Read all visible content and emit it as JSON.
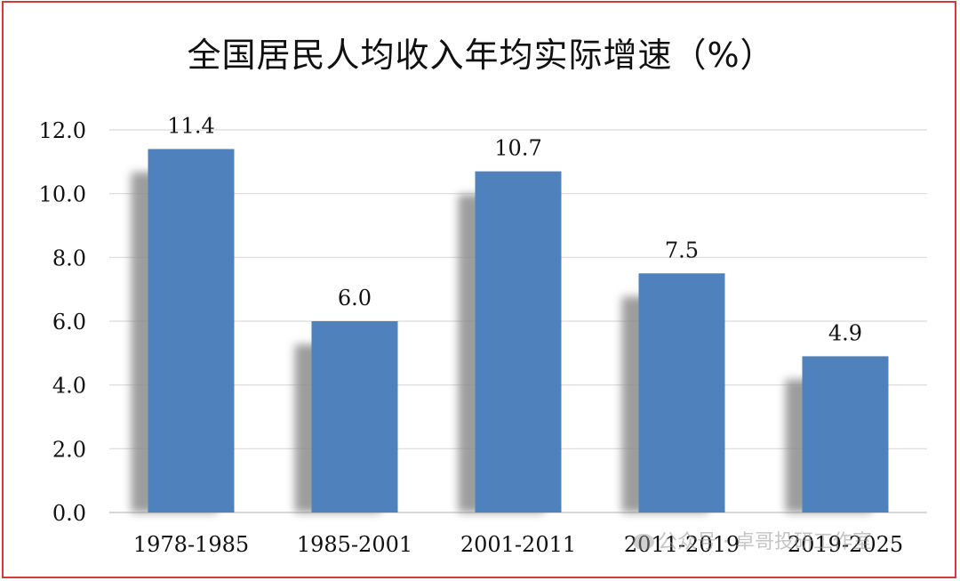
{
  "chart_data": {
    "type": "bar",
    "title": "全国居民人均收入年均实际增速（%）",
    "categories": [
      "1978-1985",
      "1985-2001",
      "2001-2011",
      "2011-2019",
      "2019-2025"
    ],
    "series": [
      {
        "values": [
          11.4,
          6.0,
          10.7,
          7.5,
          4.9
        ],
        "color": "#4f81bd"
      }
    ],
    "data_labels": [
      "11.4",
      "6.0",
      "10.7",
      "7.5",
      "4.9"
    ],
    "ylim": [
      0,
      12
    ],
    "yticks": [
      "0.0",
      "2.0",
      "4.0",
      "6.0",
      "8.0",
      "10.0",
      "12.0"
    ],
    "grid": true,
    "legend": "none",
    "xlabel": "",
    "ylabel": ""
  },
  "watermark": "公众号 · 卓哥投研工作室",
  "colors": {
    "bar": "#4f81bd",
    "shadow": "#8c8c8c",
    "border": "#d63a3a",
    "grid": "#d9d9d9"
  }
}
